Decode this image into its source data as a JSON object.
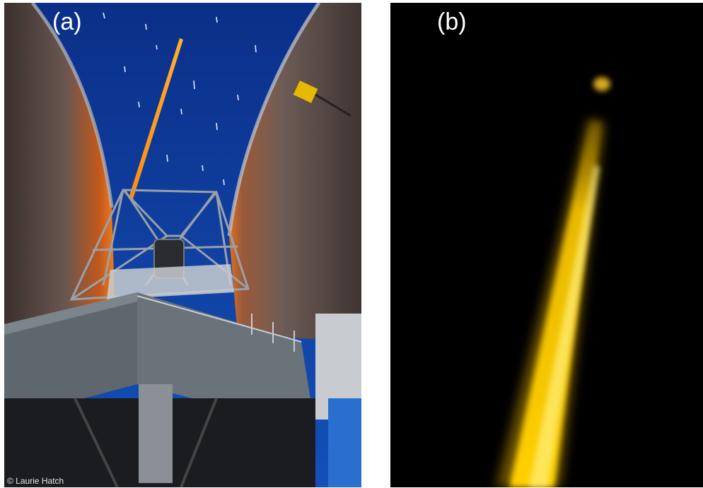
{
  "panel_a": {
    "label": "(a)",
    "credit": "© Laurie Hatch",
    "colors": {
      "sky": "#0e3fa0",
      "laser": "#ffa020",
      "dome": "#5a4a46",
      "dome_glow": "#e06820",
      "structure": "#8a9096",
      "platform": "#606870",
      "railing": "#2a6fcf"
    }
  },
  "panel_b": {
    "label": "(b)",
    "colors": {
      "background": "#000000",
      "beam": "#f2c300",
      "beam_core": "#fff060",
      "spot": "#d8a820"
    }
  }
}
